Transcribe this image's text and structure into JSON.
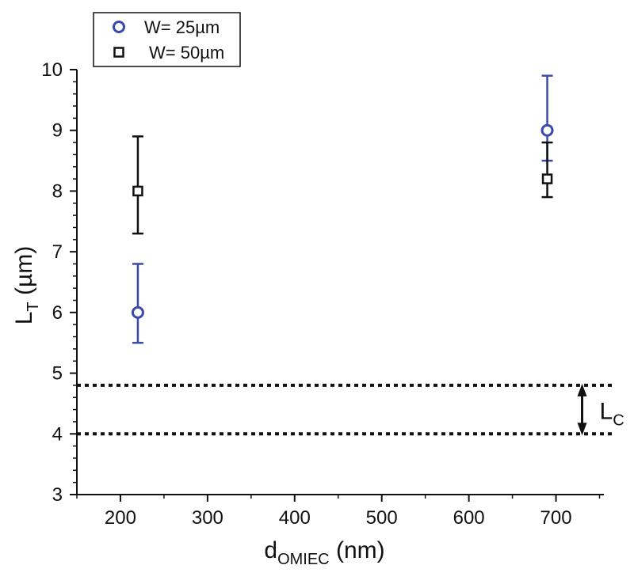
{
  "chart_data": {
    "type": "scatter",
    "xlabel": {
      "main": "d",
      "sub": "OMIEC",
      "unit": " (nm)"
    },
    "ylabel": {
      "main": "L",
      "sub": "T",
      "unit": " (µm)"
    },
    "xlim": [
      150,
      755
    ],
    "ylim": [
      3,
      10
    ],
    "x_ticks": [
      200,
      300,
      400,
      500,
      600,
      700
    ],
    "y_ticks": [
      3,
      4,
      5,
      6,
      7,
      8,
      9,
      10
    ],
    "x_tick_labels": [
      "200",
      "300",
      "400",
      "500",
      "600",
      "700"
    ],
    "y_tick_labels": [
      "3",
      "4",
      "5",
      "6",
      "7",
      "8",
      "9",
      "10"
    ],
    "grid": false,
    "legend_position": "top-left",
    "series": [
      {
        "name": "W= 25µm",
        "marker": "circle",
        "color": "#3a4aaa",
        "points": [
          {
            "x": 220,
            "y": 6.0,
            "err_low": 5.5,
            "err_high": 6.8
          },
          {
            "x": 690,
            "y": 9.0,
            "err_low": 8.5,
            "err_high": 9.9
          }
        ]
      },
      {
        "name": "W= 50µm",
        "marker": "square",
        "color": "#111111",
        "points": [
          {
            "x": 220,
            "y": 8.0,
            "err_low": 7.3,
            "err_high": 8.9
          },
          {
            "x": 690,
            "y": 8.2,
            "err_low": 7.9,
            "err_high": 8.8
          }
        ]
      }
    ],
    "reference_lines": [
      {
        "y": 4.8,
        "style": "dotted"
      },
      {
        "y": 4.0,
        "style": "dotted"
      }
    ],
    "annotation": {
      "main": "L",
      "sub": "C",
      "x": 730,
      "y_from": 4.0,
      "y_to": 4.8
    }
  }
}
